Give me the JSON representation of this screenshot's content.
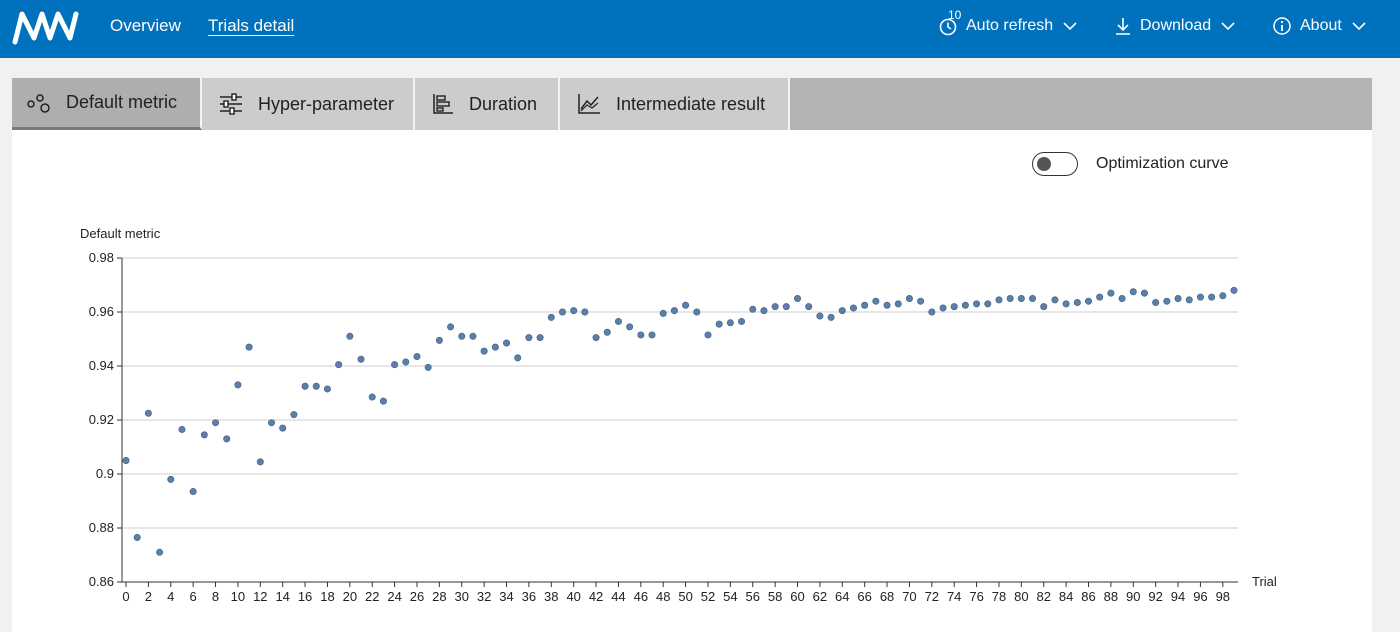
{
  "colors": {
    "topbar": "#0071bc",
    "accent_point": "#5b7fa6",
    "grid": "#cfcfcf"
  },
  "nav": {
    "logo": "nni-logo",
    "overview": "Overview",
    "trials_detail": "Trials detail",
    "refresh_badge": "10",
    "auto_refresh": "Auto refresh",
    "download": "Download",
    "about": "About"
  },
  "tabs": [
    {
      "label": "Default metric",
      "icon": "scatter-icon"
    },
    {
      "label": "Hyper-parameter",
      "icon": "sliders-icon"
    },
    {
      "label": "Duration",
      "icon": "bar-chart-icon"
    },
    {
      "label": "Intermediate result",
      "icon": "line-chart-icon"
    }
  ],
  "toggle": {
    "label": "Optimization curve",
    "on": false
  },
  "chart_data": {
    "type": "scatter",
    "ylabel": "Default metric",
    "xlabel": "Trial",
    "ylim": [
      0.86,
      0.98
    ],
    "yticks": [
      "0.98",
      "0.96",
      "0.94",
      "0.92",
      "0.9",
      "0.88",
      "0.86"
    ],
    "xticks": [
      "0",
      "2",
      "4",
      "6",
      "8",
      "10",
      "12",
      "14",
      "16",
      "18",
      "20",
      "22",
      "24",
      "26",
      "28",
      "30",
      "32",
      "34",
      "36",
      "38",
      "40",
      "42",
      "44",
      "46",
      "48",
      "50",
      "52",
      "54",
      "56",
      "58",
      "60",
      "62",
      "64",
      "66",
      "68",
      "70",
      "72",
      "74",
      "76",
      "78",
      "80",
      "82",
      "84",
      "86",
      "88",
      "90",
      "92",
      "94",
      "96",
      "98"
    ],
    "grid": true,
    "x": [
      0,
      1,
      2,
      3,
      4,
      5,
      6,
      7,
      8,
      9,
      10,
      11,
      12,
      13,
      14,
      15,
      16,
      17,
      18,
      19,
      20,
      21,
      22,
      23,
      24,
      25,
      26,
      27,
      28,
      29,
      30,
      31,
      32,
      33,
      34,
      35,
      36,
      37,
      38,
      39,
      40,
      41,
      42,
      43,
      44,
      45,
      46,
      47,
      48,
      49,
      50,
      51,
      52,
      53,
      54,
      55,
      56,
      57,
      58,
      59,
      60,
      61,
      62,
      63,
      64,
      65,
      66,
      67,
      68,
      69,
      70,
      71,
      72,
      73,
      74,
      75,
      76,
      77,
      78,
      79,
      80,
      81,
      82,
      83,
      84,
      85,
      86,
      87,
      88,
      89,
      90,
      91,
      92,
      93,
      94,
      95,
      96,
      97,
      98,
      99
    ],
    "y": [
      0.905,
      0.8765,
      0.9225,
      0.871,
      0.898,
      0.9165,
      0.8935,
      0.9145,
      0.919,
      0.913,
      0.933,
      0.947,
      0.9045,
      0.919,
      0.917,
      0.922,
      0.9325,
      0.9325,
      0.9315,
      0.9405,
      0.951,
      0.9425,
      0.9285,
      0.927,
      0.9405,
      0.9415,
      0.9435,
      0.9395,
      0.9495,
      0.9545,
      0.951,
      0.951,
      0.9455,
      0.947,
      0.9485,
      0.943,
      0.9505,
      0.9505,
      0.958,
      0.96,
      0.9605,
      0.96,
      0.9505,
      0.9525,
      0.9565,
      0.9545,
      0.9515,
      0.9515,
      0.9595,
      0.9605,
      0.9625,
      0.96,
      0.9515,
      0.9555,
      0.956,
      0.9565,
      0.961,
      0.9605,
      0.962,
      0.962,
      0.965,
      0.962,
      0.9585,
      0.958,
      0.9605,
      0.9615,
      0.9625,
      0.964,
      0.9625,
      0.963,
      0.965,
      0.964,
      0.96,
      0.9615,
      0.962,
      0.9625,
      0.963,
      0.963,
      0.9645,
      0.965,
      0.965,
      0.965,
      0.962,
      0.9645,
      0.963,
      0.9635,
      0.964,
      0.9655,
      0.967,
      0.965,
      0.9675,
      0.967,
      0.9635,
      0.964,
      0.965,
      0.9645,
      0.9655,
      0.9655,
      0.966,
      0.968
    ]
  }
}
